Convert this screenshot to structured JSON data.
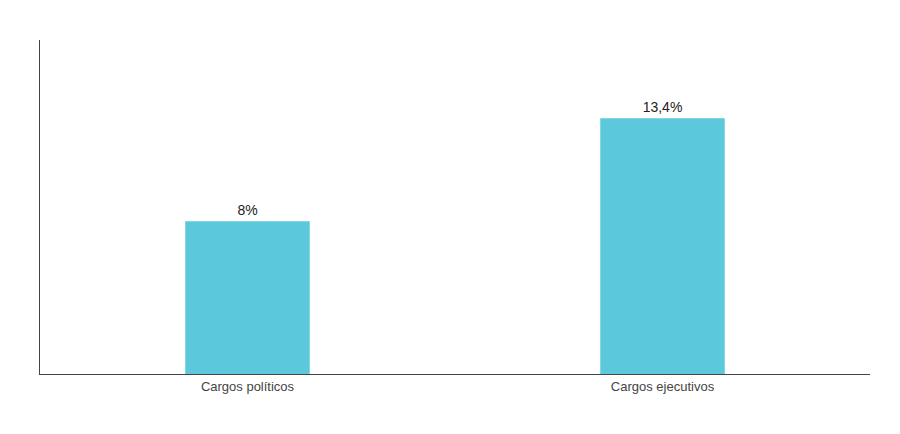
{
  "chart_data": {
    "type": "bar",
    "categories": [
      "Cargos políticos",
      "Cargos ejecutivos"
    ],
    "values": [
      8.0,
      13.4
    ],
    "value_labels": [
      "8%",
      "13,4%"
    ],
    "data_labels": true,
    "color": "#5bc8dc",
    "ylim": [
      0,
      17.5
    ],
    "yticks": [],
    "grid": false,
    "tick_labels": "x"
  }
}
